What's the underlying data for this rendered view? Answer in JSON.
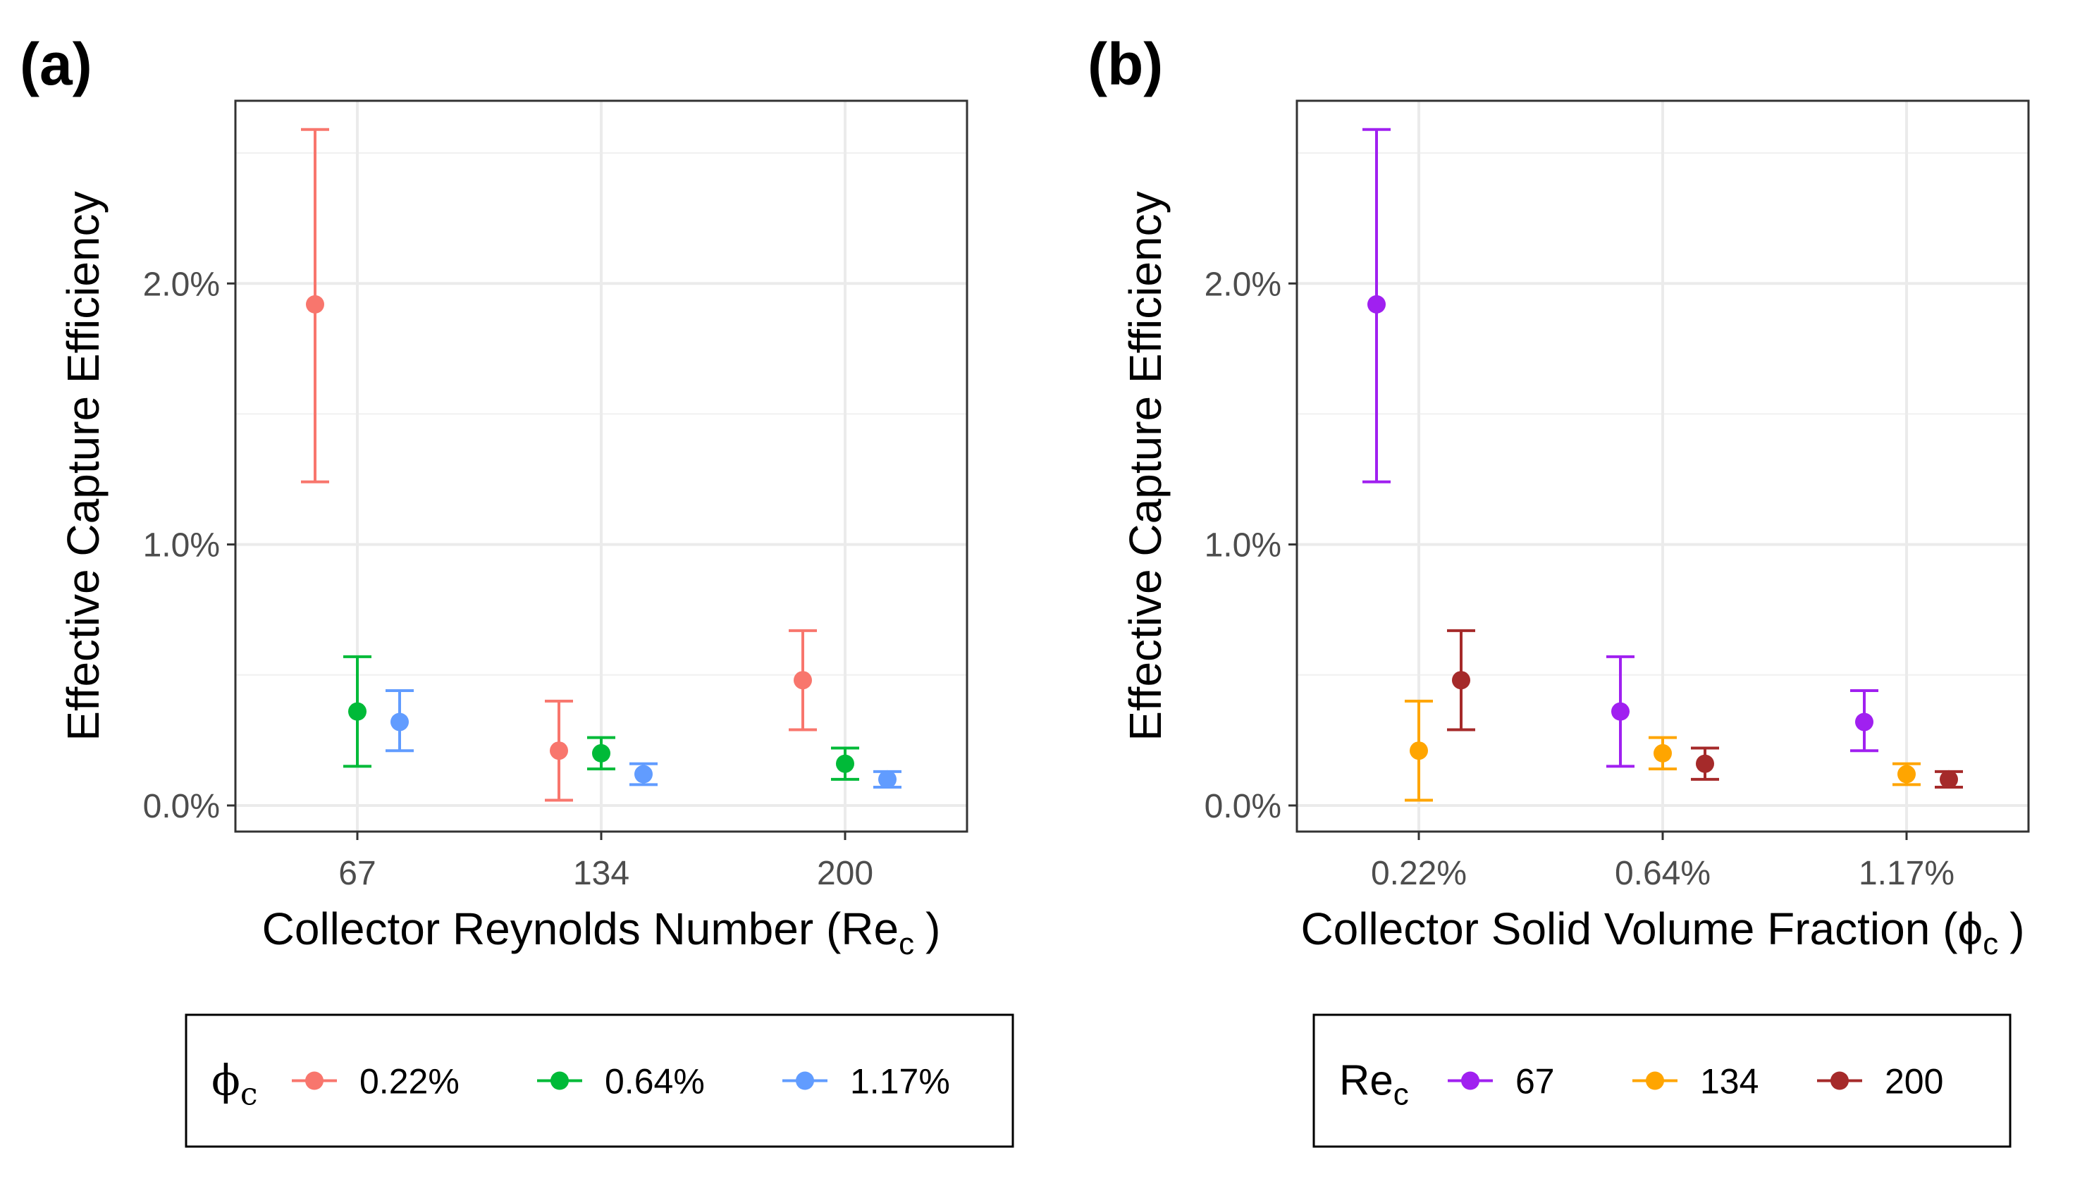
{
  "chart_data": [
    {
      "type": "scatter",
      "panel_label": "(a)",
      "xlabel": "Collector Reynolds Number (Re",
      "xlabel_sub": "c",
      "xlabel_end": ")",
      "ylabel": "Effective Capture Efficiency",
      "categories": [
        "67",
        "134",
        "200"
      ],
      "ylim": [
        -0.1,
        2.7
      ],
      "yticks": [
        0.0,
        1.0,
        2.0
      ],
      "ytick_labels": [
        "0.0%",
        "1.0%",
        "2.0%"
      ],
      "grid": true,
      "legend": {
        "title": "ϕ",
        "title_sub": "c",
        "placement": "bottom",
        "entries": [
          "0.22%",
          "0.64%",
          "1.17%"
        ]
      },
      "series": [
        {
          "name": "0.22%",
          "color": "#F8766D",
          "values": [
            1.92,
            0.21,
            0.48
          ],
          "lower": [
            1.24,
            0.02,
            0.29
          ],
          "upper": [
            2.59,
            0.4,
            0.67
          ]
        },
        {
          "name": "0.64%",
          "color": "#00BA38",
          "values": [
            0.36,
            0.2,
            0.16
          ],
          "lower": [
            0.15,
            0.14,
            0.1
          ],
          "upper": [
            0.57,
            0.26,
            0.22
          ]
        },
        {
          "name": "1.17%",
          "color": "#619CFF",
          "values": [
            0.32,
            0.12,
            0.1
          ],
          "lower": [
            0.21,
            0.08,
            0.07
          ],
          "upper": [
            0.44,
            0.16,
            0.13
          ]
        }
      ]
    },
    {
      "type": "scatter",
      "panel_label": "(b)",
      "xlabel": "Collector Solid Volume Fraction (ϕ",
      "xlabel_sub": "c",
      "xlabel_end": ")",
      "ylabel": "Effective Capture Efficiency",
      "categories": [
        "0.22%",
        "0.64%",
        "1.17%"
      ],
      "ylim": [
        -0.1,
        2.7
      ],
      "yticks": [
        0.0,
        1.0,
        2.0
      ],
      "ytick_labels": [
        "0.0%",
        "1.0%",
        "2.0%"
      ],
      "grid": true,
      "legend": {
        "title": "Re",
        "title_sub": "c",
        "placement": "bottom",
        "entries": [
          "67",
          "134",
          "200"
        ]
      },
      "series": [
        {
          "name": "67",
          "color": "#A020F0",
          "values": [
            1.92,
            0.36,
            0.32
          ],
          "lower": [
            1.24,
            0.15,
            0.21
          ],
          "upper": [
            2.59,
            0.57,
            0.44
          ]
        },
        {
          "name": "134",
          "color": "#FFA500",
          "values": [
            0.21,
            0.2,
            0.12
          ],
          "lower": [
            0.02,
            0.14,
            0.08
          ],
          "upper": [
            0.4,
            0.26,
            0.16
          ]
        },
        {
          "name": "200",
          "color": "#A52A2A",
          "values": [
            0.48,
            0.16,
            0.1
          ],
          "lower": [
            0.29,
            0.1,
            0.07
          ],
          "upper": [
            0.67,
            0.22,
            0.13
          ]
        }
      ]
    }
  ]
}
